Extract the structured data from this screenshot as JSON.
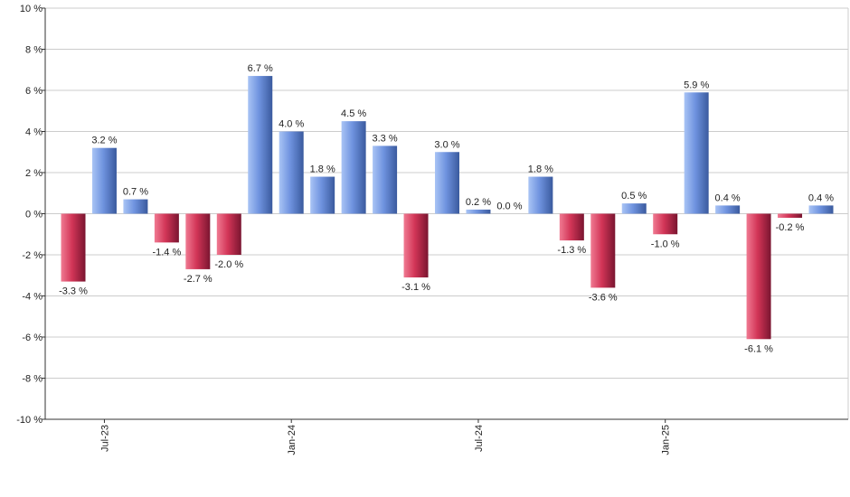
{
  "chart_data": {
    "type": "bar",
    "x": [
      "2023-06",
      "2023-07",
      "2023-08",
      "2023-09",
      "2023-10",
      "2023-11",
      "2023-12",
      "2024-01",
      "2024-02",
      "2024-03",
      "2024-04",
      "2024-05",
      "2024-06",
      "2024-07",
      "2024-08",
      "2024-09",
      "2024-10",
      "2024-11",
      "2024-12",
      "2025-01",
      "2025-02",
      "2025-03",
      "2025-04",
      "2025-05",
      "2025-06"
    ],
    "values": [
      -3.3,
      3.2,
      0.7,
      -1.4,
      -2.7,
      -2.0,
      6.7,
      4.0,
      1.8,
      4.5,
      3.3,
      -3.1,
      3.0,
      0.2,
      0.0,
      1.8,
      -1.3,
      -3.6,
      0.5,
      -1.0,
      5.9,
      0.4,
      -6.1,
      -0.2,
      0.4
    ],
    "data_labels": [
      "-3.3 %",
      "3.2 %",
      "0.7 %",
      "-1.4 %",
      "-2.7 %",
      "-2.0 %",
      "6.7 %",
      "4.0 %",
      "1.8 %",
      "4.5 %",
      "3.3 %",
      "-3.1 %",
      "3.0 %",
      "0.2 %",
      "0.0 %",
      "1.8 %",
      "-1.3 %",
      "-3.6 %",
      "0.5 %",
      "-1.0 %",
      "5.9 %",
      "0.4 %",
      "-6.1 %",
      "-0.2 %",
      "0.4 %"
    ],
    "x_tick_labels": [
      {
        "label": "Jul-23",
        "x": "2023-07"
      },
      {
        "label": "Jan-24",
        "x": "2024-01"
      },
      {
        "label": "Jul-24",
        "x": "2024-07"
      },
      {
        "label": "Jan-25",
        "x": "2025-01"
      }
    ],
    "y_tick_labels": [
      "10 %",
      "8 %",
      "6 %",
      "4 %",
      "2 %",
      "0 %",
      "-2 %",
      "-4 %",
      "-6 %",
      "-8 %",
      "-10 %"
    ],
    "y_ticks": [
      10,
      8,
      6,
      4,
      2,
      0,
      -2,
      -4,
      -6,
      -8,
      -10
    ],
    "ylim": [
      -10,
      10
    ],
    "grid": true,
    "title": "",
    "xlabel": "",
    "ylabel": "",
    "colors": {
      "positive_light": "#a9c4f5",
      "positive_mid": "#6f93df",
      "positive_dark": "#3a5a9e",
      "negative_light": "#f07a92",
      "negative_mid": "#d23557",
      "negative_dark": "#7a1530",
      "grid": "#cccccc",
      "axis": "#333333"
    }
  }
}
